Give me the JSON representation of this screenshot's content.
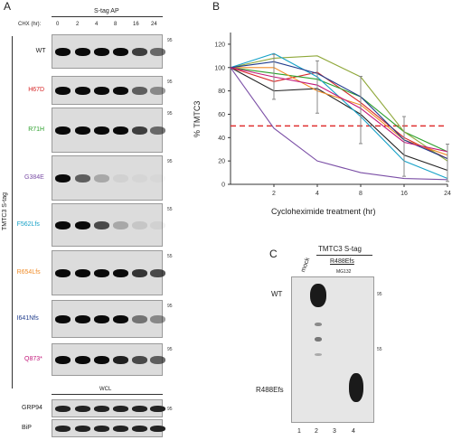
{
  "panel_a": {
    "letter": "A",
    "header": "S-tag AP",
    "chx_label": "CHX (hr):",
    "timepoints": [
      "0",
      "2",
      "4",
      "8",
      "16",
      "24"
    ],
    "side_label": "TMTC3 S-tag",
    "wcl_label": "WCL",
    "blots": [
      {
        "label": "WT",
        "color": "#222222",
        "mw": "95"
      },
      {
        "label": "H67D",
        "color": "#d62728",
        "mw": "95"
      },
      {
        "label": "R71H",
        "color": "#2ca02c",
        "mw": "95"
      },
      {
        "label": "G384E",
        "color": "#7b4fa6",
        "mw": "95"
      },
      {
        "label": "F562Lfs",
        "color": "#17a2c8",
        "mw": "55"
      },
      {
        "label": "R654Lfs",
        "color": "#f08c28",
        "mw": "55"
      },
      {
        "label": "I641Nfs",
        "color": "#1f3c8c",
        "mw": "95"
      },
      {
        "label": "Q873*",
        "color": "#c2187a",
        "mw": "95"
      }
    ],
    "wcl_blots": [
      {
        "label": "GRP94",
        "mw": "95"
      },
      {
        "label": "BiP",
        "mw": ""
      }
    ]
  },
  "panel_b": {
    "letter": "B",
    "ylabel": "% TMTC3",
    "xlabel": "Cycloheximide treatment (hr)"
  },
  "panel_c": {
    "letter": "C",
    "header": "TMTC3 S-tag",
    "sub_header": "R488Efs",
    "treatment": "MG132",
    "mock": "mock",
    "row_wt": "WT",
    "row_mut": "R488Efs",
    "lanes": [
      "1",
      "2",
      "3",
      "4"
    ],
    "mw": [
      "95",
      "55"
    ]
  },
  "chart_data": {
    "type": "line",
    "x": [
      0,
      2,
      4,
      8,
      16,
      24
    ],
    "xticks": [
      "2",
      "4",
      "8",
      "16",
      "24"
    ],
    "ylim": [
      0,
      130
    ],
    "yticks": [
      0,
      20,
      40,
      60,
      80,
      100,
      120
    ],
    "ylabel": "% TMTC3",
    "xlabel": "Cycloheximide treatment (hr)",
    "threshold": 50,
    "threshold_color": "#e03030",
    "series": [
      {
        "color": "#222222",
        "values": [
          100,
          80,
          82,
          60,
          25,
          12
        ]
      },
      {
        "color": "#d62728",
        "values": [
          100,
          88,
          96,
          70,
          40,
          22
        ]
      },
      {
        "color": "#2ca02c",
        "values": [
          100,
          95,
          90,
          75,
          45,
          28
        ]
      },
      {
        "color": "#8fa83a",
        "values": [
          100,
          108,
          110,
          92,
          45,
          20
        ]
      },
      {
        "color": "#7b4fa6",
        "values": [
          100,
          48,
          20,
          10,
          5,
          4
        ]
      },
      {
        "color": "#17a2c8",
        "values": [
          100,
          112,
          92,
          58,
          20,
          5
        ]
      },
      {
        "color": "#f08c28",
        "values": [
          100,
          100,
          80,
          68,
          38,
          25
        ]
      },
      {
        "color": "#1f3c8c",
        "values": [
          100,
          105,
          95,
          75,
          38,
          22
        ]
      },
      {
        "color": "#c2187a",
        "values": [
          100,
          92,
          85,
          65,
          36,
          28
        ]
      }
    ]
  }
}
